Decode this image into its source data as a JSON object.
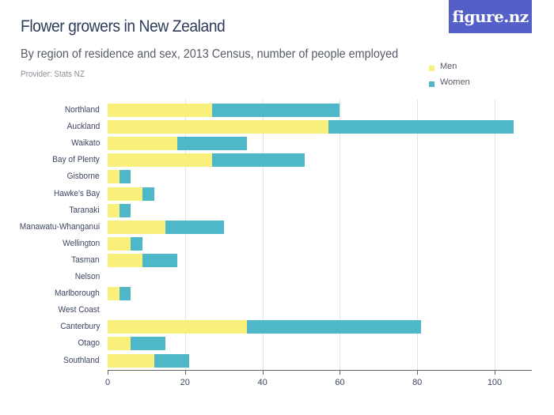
{
  "header": {
    "title": "Flower growers in New Zealand",
    "subtitle": "By region of residence and sex, 2013 Census, number of people employed",
    "provider": "Provider: Stats NZ",
    "logo": "figure.nz"
  },
  "legend": {
    "items": [
      {
        "label": "Men",
        "color": "#f8f07a"
      },
      {
        "label": "Women",
        "color": "#4eb8c8"
      }
    ]
  },
  "colors": {
    "men": "#f8f07a",
    "women": "#4eb8c8",
    "logo_bg": "#5460c8",
    "title": "#2e3c5a"
  },
  "chart_data": {
    "type": "bar",
    "orientation": "horizontal",
    "stacked": true,
    "title": "Flower growers in New Zealand",
    "subtitle": "By region of residence and sex, 2013 Census, number of people employed",
    "xlabel": "",
    "ylabel": "",
    "xlim": [
      0,
      110
    ],
    "xticks": [
      0,
      20,
      40,
      60,
      80,
      100
    ],
    "grid": true,
    "legend_position": "top-right",
    "categories": [
      "Northland",
      "Auckland",
      "Waikato",
      "Bay of Plenty",
      "Gisborne",
      "Hawke's Bay",
      "Taranaki",
      "Manawatu-Whanganui",
      "Wellington",
      "Tasman",
      "Nelson",
      "Marlborough",
      "West Coast",
      "Canterbury",
      "Otago",
      "Southland"
    ],
    "series": [
      {
        "name": "Men",
        "color": "#f8f07a",
        "values": [
          27,
          57,
          18,
          27,
          3,
          9,
          3,
          15,
          6,
          9,
          0,
          3,
          0,
          36,
          6,
          12
        ]
      },
      {
        "name": "Women",
        "color": "#4eb8c8",
        "values": [
          33,
          48,
          18,
          24,
          3,
          3,
          3,
          15,
          3,
          9,
          0,
          3,
          0,
          45,
          9,
          9
        ]
      }
    ]
  }
}
